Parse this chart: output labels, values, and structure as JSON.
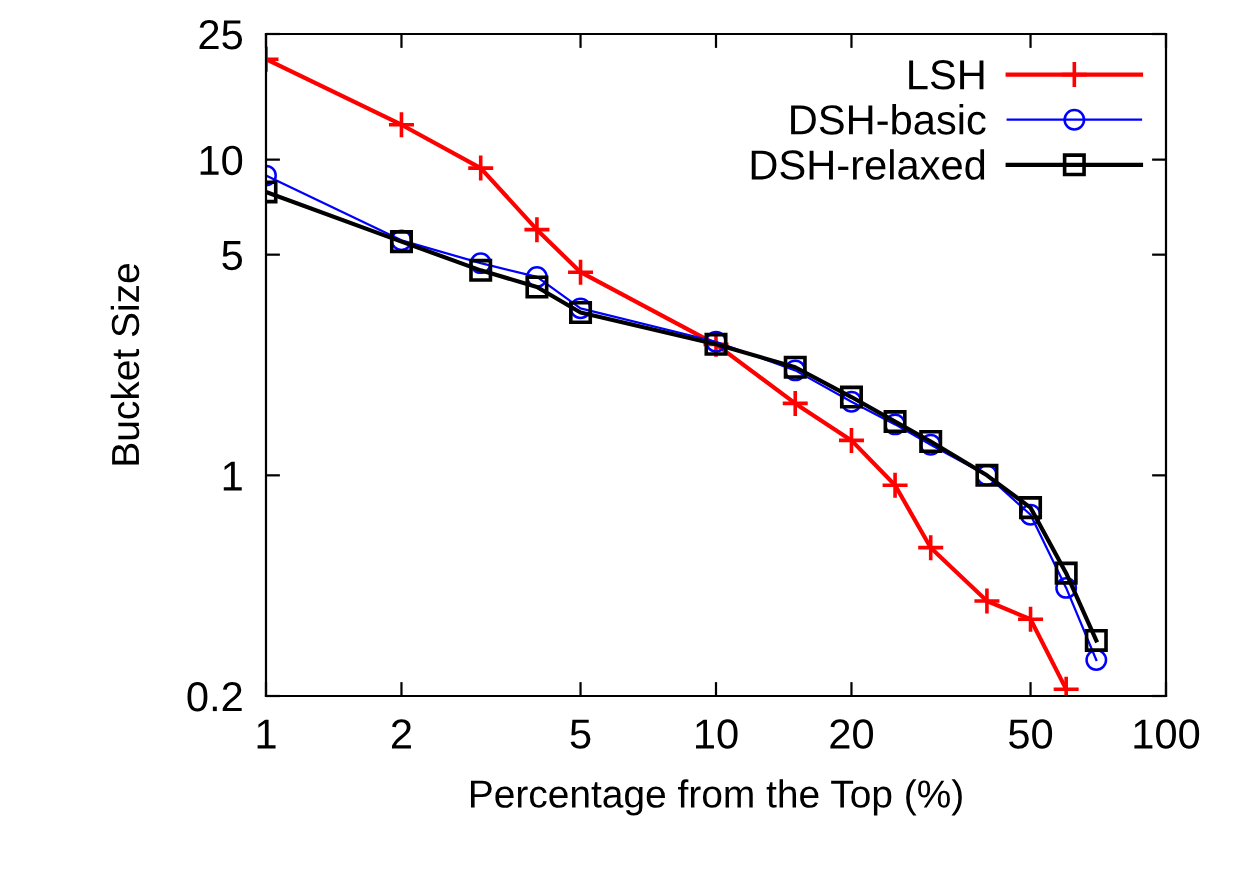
{
  "chart_data": {
    "type": "line",
    "xlabel": "Percentage from the Top (%)",
    "ylabel": "Bucket Size",
    "log": "xy",
    "xlim": [
      1,
      100
    ],
    "xticks": [
      1,
      2,
      5,
      10,
      20,
      50,
      100
    ],
    "ylim": [
      0.2,
      25
    ],
    "yticks": [
      0.2,
      1,
      5,
      10,
      25
    ],
    "grid": false,
    "legend": "top right",
    "line_style": "solid",
    "series": [
      {
        "name": "LSH",
        "color": "#ff0000",
        "marker": "cross",
        "x": [
          1,
          2,
          3,
          4,
          5,
          10,
          15,
          20,
          25,
          30,
          40,
          50,
          60
        ],
        "values": [
          20.8,
          12.9,
          9.4,
          6.0,
          4.4,
          2.6,
          1.69,
          1.29,
          0.93,
          0.59,
          0.4,
          0.35,
          0.21
        ]
      },
      {
        "name": "DSH-basic",
        "color": "#0000ff",
        "marker": "circle",
        "x": [
          1,
          2,
          3,
          4,
          5,
          10,
          15,
          20,
          25,
          30,
          40,
          50,
          60,
          70
        ],
        "values": [
          8.9,
          5.55,
          4.7,
          4.25,
          3.38,
          2.65,
          2.15,
          1.71,
          1.45,
          1.25,
          1.0,
          0.75,
          0.44,
          0.26
        ]
      },
      {
        "name": "DSH-relaxed",
        "color": "#000000",
        "marker": "square",
        "x": [
          1,
          2,
          3,
          4,
          5,
          10,
          15,
          20,
          25,
          30,
          40,
          50,
          60,
          70
        ],
        "values": [
          7.9,
          5.5,
          4.46,
          3.95,
          3.28,
          2.6,
          2.2,
          1.77,
          1.48,
          1.28,
          1.0,
          0.79,
          0.49,
          0.3
        ]
      }
    ]
  }
}
